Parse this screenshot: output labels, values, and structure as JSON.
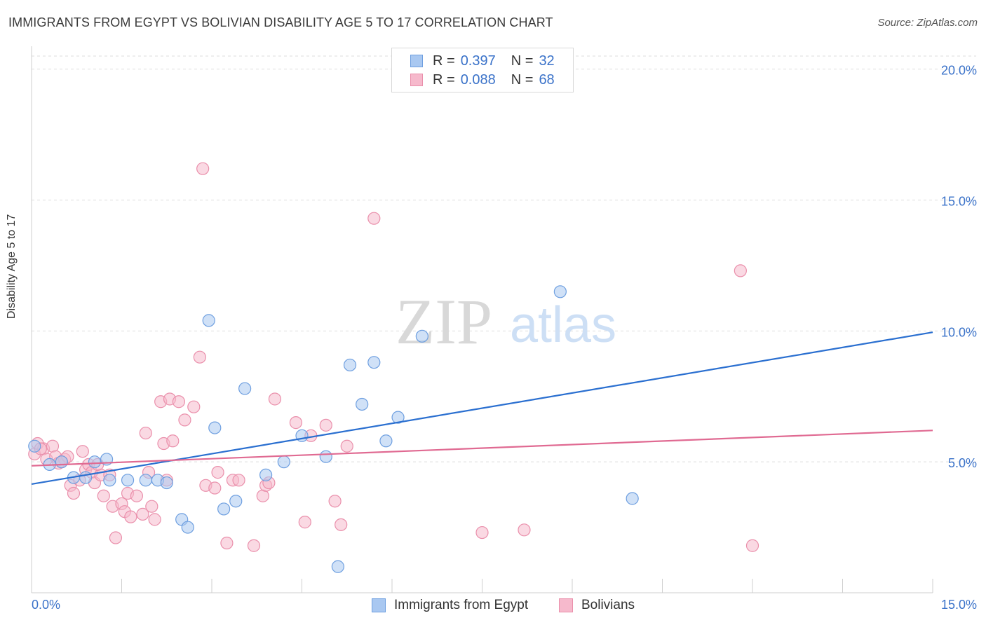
{
  "title": "IMMIGRANTS FROM EGYPT VS BOLIVIAN DISABILITY AGE 5 TO 17 CORRELATION CHART",
  "source": "Source: ZipAtlas.com",
  "watermark": {
    "zip": "ZIP",
    "atlas": "atlas"
  },
  "legend_top": {
    "r_label": "R =",
    "n_label": "N =",
    "rows": [
      {
        "r": "0.397",
        "n": "32"
      },
      {
        "r": "0.088",
        "n": "68"
      }
    ]
  },
  "colors": {
    "blue_fill": "#a9c8f1",
    "blue_stroke": "#6e9fe0",
    "blue_line": "#2a6fd0",
    "pink_fill": "#f6b9cc",
    "pink_stroke": "#ea8fab",
    "pink_line": "#e06a92",
    "tick_label": "#3a72c9",
    "grid": "#dddddd"
  },
  "chart_data": {
    "type": "scatter",
    "title": "IMMIGRANTS FROM EGYPT VS BOLIVIAN DISABILITY AGE 5 TO 17 CORRELATION CHART",
    "xlabel": "",
    "ylabel": "Disability Age 5 to 17",
    "xlim": [
      0,
      15
    ],
    "ylim": [
      0,
      20.5
    ],
    "x_tick_labels": [
      "0.0%",
      "15.0%"
    ],
    "y_ticks": [
      5,
      10,
      15,
      20
    ],
    "y_tick_labels": [
      "5.0%",
      "10.0%",
      "15.0%",
      "20.0%"
    ],
    "series": [
      {
        "name": "Immigrants from Egypt",
        "color": "blue",
        "trend": {
          "x": [
            0,
            15
          ],
          "y": [
            4.15,
            9.95
          ]
        },
        "points": [
          [
            0.05,
            5.6
          ],
          [
            0.3,
            4.9
          ],
          [
            0.5,
            5.0
          ],
          [
            0.7,
            4.4
          ],
          [
            0.9,
            4.4
          ],
          [
            1.05,
            5.0
          ],
          [
            1.25,
            5.1
          ],
          [
            1.3,
            4.3
          ],
          [
            1.6,
            4.3
          ],
          [
            1.9,
            4.3
          ],
          [
            2.1,
            4.3
          ],
          [
            2.25,
            4.2
          ],
          [
            2.5,
            2.8
          ],
          [
            2.6,
            2.5
          ],
          [
            2.95,
            10.4
          ],
          [
            3.05,
            6.3
          ],
          [
            3.2,
            3.2
          ],
          [
            3.4,
            3.5
          ],
          [
            3.55,
            7.8
          ],
          [
            3.9,
            4.5
          ],
          [
            4.2,
            5.0
          ],
          [
            4.5,
            6.0
          ],
          [
            4.9,
            5.2
          ],
          [
            5.1,
            1.0
          ],
          [
            5.3,
            8.7
          ],
          [
            5.5,
            7.2
          ],
          [
            5.7,
            8.8
          ],
          [
            5.9,
            5.8
          ],
          [
            6.1,
            6.7
          ],
          [
            6.5,
            9.8
          ],
          [
            8.8,
            11.5
          ],
          [
            10.0,
            3.6
          ]
        ]
      },
      {
        "name": "Bolivians",
        "color": "pink",
        "trend": {
          "x": [
            0,
            15
          ],
          "y": [
            4.85,
            6.2
          ]
        },
        "points": [
          [
            0.05,
            5.3
          ],
          [
            0.1,
            5.7
          ],
          [
            0.2,
            5.5
          ],
          [
            0.25,
            5.1
          ],
          [
            0.35,
            5.6
          ],
          [
            0.4,
            5.2
          ],
          [
            0.45,
            4.95
          ],
          [
            0.55,
            5.1
          ],
          [
            0.6,
            5.2
          ],
          [
            0.65,
            4.1
          ],
          [
            0.7,
            3.8
          ],
          [
            0.8,
            4.3
          ],
          [
            0.85,
            5.4
          ],
          [
            0.9,
            4.7
          ],
          [
            0.95,
            4.9
          ],
          [
            1.0,
            4.6
          ],
          [
            1.05,
            4.2
          ],
          [
            1.15,
            4.5
          ],
          [
            1.2,
            3.7
          ],
          [
            1.3,
            4.5
          ],
          [
            1.35,
            3.3
          ],
          [
            1.4,
            2.1
          ],
          [
            1.5,
            3.4
          ],
          [
            1.55,
            3.1
          ],
          [
            1.6,
            3.8
          ],
          [
            1.65,
            2.9
          ],
          [
            1.75,
            3.7
          ],
          [
            1.85,
            3.0
          ],
          [
            1.9,
            6.1
          ],
          [
            1.95,
            4.6
          ],
          [
            2.0,
            3.3
          ],
          [
            2.05,
            2.8
          ],
          [
            2.15,
            7.3
          ],
          [
            2.2,
            5.7
          ],
          [
            2.25,
            4.3
          ],
          [
            2.3,
            7.4
          ],
          [
            2.35,
            5.8
          ],
          [
            2.45,
            7.3
          ],
          [
            2.55,
            6.6
          ],
          [
            2.7,
            7.1
          ],
          [
            2.8,
            9.0
          ],
          [
            2.85,
            16.2
          ],
          [
            2.9,
            4.1
          ],
          [
            3.05,
            4.0
          ],
          [
            3.1,
            4.6
          ],
          [
            3.25,
            1.9
          ],
          [
            3.35,
            4.3
          ],
          [
            3.45,
            4.3
          ],
          [
            3.7,
            1.8
          ],
          [
            3.85,
            3.7
          ],
          [
            3.9,
            4.1
          ],
          [
            3.95,
            4.2
          ],
          [
            4.05,
            7.4
          ],
          [
            4.4,
            6.5
          ],
          [
            4.55,
            2.7
          ],
          [
            4.65,
            6.0
          ],
          [
            4.9,
            6.4
          ],
          [
            5.05,
            3.5
          ],
          [
            5.15,
            2.6
          ],
          [
            5.25,
            5.6
          ],
          [
            5.7,
            14.3
          ],
          [
            7.5,
            2.3
          ],
          [
            8.2,
            2.4
          ],
          [
            11.8,
            12.3
          ],
          [
            12.0,
            1.8
          ],
          [
            0.15,
            5.5
          ],
          [
            0.5,
            5.0
          ],
          [
            1.1,
            4.9
          ]
        ]
      }
    ]
  },
  "legend_bottom": [
    {
      "label": "Immigrants from Egypt"
    },
    {
      "label": "Bolivians"
    }
  ]
}
